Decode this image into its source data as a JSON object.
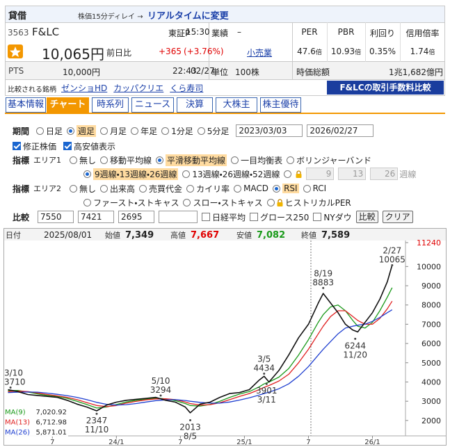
{
  "header": {
    "badge": "貸借",
    "delay": "株価15分ディレイ →",
    "realtime": "リアルタイムに変更"
  },
  "quote": {
    "code": "3563",
    "name": "F&LC",
    "market": "東証P",
    "time": "15:30",
    "price": "10,065円",
    "change_label": "前日比",
    "change": "+365",
    "change_pct": "(+3.76%)",
    "pts_label": "PTS",
    "pts_price": "10,000円",
    "pts_time": "22:43",
    "pts_date": "02/27"
  },
  "info": {
    "results_label": "業績",
    "results": "–",
    "industry": "小売業",
    "unit_label": "単位",
    "unit": "100株"
  },
  "metrics": [
    {
      "label": "PER",
      "value": "47.6",
      "unit": "倍"
    },
    {
      "label": "PBR",
      "value": "10.93",
      "unit": "倍"
    },
    {
      "label": "利回り",
      "value": "0.35%"
    },
    {
      "label": "信用倍率",
      "value": "1.74",
      "unit": "倍"
    }
  ],
  "market_cap": {
    "label": "時価総額",
    "value": "1兆1,682億円"
  },
  "related": {
    "label": "比較される銘柄",
    "stocks": [
      "ゼンショHD",
      "カッパクリエ",
      "くら寿司"
    ]
  },
  "fee_link": "F&LCの取引手数料比較",
  "tabs": [
    {
      "label": "基本情報"
    },
    {
      "label": "チャート",
      "active": true
    },
    {
      "label": "時系列"
    },
    {
      "label": "ニュース"
    },
    {
      "label": "決算"
    },
    {
      "label": "大株主"
    },
    {
      "label": "株主優待"
    }
  ],
  "controls": {
    "period": {
      "label": "期間",
      "options": [
        "日足",
        "週足",
        "月足",
        "年足",
        "1分足",
        "5分足"
      ],
      "selected": 1,
      "from": "2023/03/03",
      "to": "2026/02/27"
    },
    "checks": [
      {
        "label": "修正株価",
        "checked": true
      },
      {
        "label": "高安値表示",
        "checked": true
      }
    ],
    "area1": {
      "label": "指標",
      "area": "エリア1",
      "options": [
        "無し",
        "移動平均線",
        "平滑移動平均線",
        "一目均衡表",
        "ボリンジャーバンド"
      ],
      "selected": 2,
      "sub_options": [
        "9週線・13週線・26週線",
        "13週線・26週線・52週線"
      ],
      "sub_selected": 0,
      "custom": [
        "9",
        "13",
        "26"
      ],
      "custom_unit": "週線"
    },
    "area2": {
      "label": "指標",
      "area": "エリア2",
      "options": [
        "無し",
        "出来高",
        "売買代金",
        "カイリ率",
        "MACD",
        "RSI",
        "RCI",
        "ファースト・ストキャス",
        "スロー・ストキャス",
        "ヒストリカルPER"
      ],
      "selected": 5
    },
    "compare": {
      "label": "比較",
      "codes": [
        "7550",
        "7421",
        "2695"
      ],
      "indices": [
        "日経平均",
        "グロース250",
        "NYダウ"
      ],
      "buttons": [
        "比較",
        "クリア"
      ]
    }
  },
  "chart_info": {
    "date_label": "日付",
    "date": "2025/08/01",
    "open_label": "始値",
    "open": "7,349",
    "high_label": "高値",
    "high": "7,667",
    "low_label": "安値",
    "low": "7,082",
    "close_label": "終値",
    "close": "7,589"
  },
  "chart_data": {
    "type": "line",
    "x": [
      0,
      4,
      8,
      12,
      16,
      20,
      24,
      28,
      32,
      36,
      40,
      44,
      48,
      52,
      56,
      60,
      64,
      68,
      72,
      74,
      78,
      82,
      86,
      90,
      94,
      98,
      102,
      104,
      106,
      110,
      114,
      118,
      122,
      126,
      128,
      131,
      134,
      137,
      140,
      142,
      145,
      148,
      151,
      154,
      156
    ],
    "values": [
      3600,
      3500,
      3350,
      3300,
      3250,
      3200,
      3050,
      2850,
      2700,
      2500,
      2800,
      2950,
      3050,
      3100,
      3150,
      3200,
      3050,
      2950,
      2700,
      2400,
      2850,
      2950,
      3200,
      3400,
      3450,
      3600,
      4100,
      4300,
      4000,
      4600,
      5400,
      6300,
      7000,
      8100,
      8600,
      8100,
      7600,
      7000,
      6700,
      6600,
      7100,
      7600,
      8300,
      9200,
      10065
    ],
    "color": "#111111",
    "series": [
      {
        "name": "MA(9)",
        "latest": "7,020.92",
        "color": "#1a9a1a",
        "values": [
          3550,
          3560,
          3480,
          3380,
          3300,
          3240,
          3150,
          3000,
          2830,
          2650,
          2700,
          2830,
          2960,
          3050,
          3110,
          3160,
          3120,
          3030,
          2880,
          2780,
          2750,
          2830,
          3000,
          3200,
          3370,
          3500,
          3750,
          3900,
          4000,
          4250,
          4700,
          5400,
          6200,
          7100,
          7500,
          7900,
          8000,
          7700,
          7200,
          6900,
          6800,
          7100,
          7700,
          8400,
          8900
        ]
      },
      {
        "name": "MA(13)",
        "latest": "6,712.98",
        "color": "#e02020",
        "values": [
          3500,
          3530,
          3500,
          3430,
          3350,
          3280,
          3200,
          3080,
          2930,
          2780,
          2720,
          2780,
          2900,
          2990,
          3070,
          3120,
          3130,
          3080,
          2960,
          2880,
          2800,
          2820,
          2920,
          3080,
          3250,
          3400,
          3600,
          3720,
          3820,
          4050,
          4400,
          5000,
          5700,
          6500,
          6900,
          7400,
          7700,
          7700,
          7400,
          7200,
          7000,
          7000,
          7300,
          7800,
          8200
        ]
      },
      {
        "name": "MA(26)",
        "latest": "5,871.01",
        "color": "#1f3fd0",
        "values": [
          3450,
          3470,
          3480,
          3470,
          3420,
          3360,
          3290,
          3200,
          3080,
          2940,
          2840,
          2800,
          2820,
          2880,
          2960,
          3030,
          3070,
          3080,
          3040,
          3000,
          2940,
          2900,
          2900,
          2960,
          3060,
          3180,
          3320,
          3400,
          3470,
          3650,
          3900,
          4300,
          4800,
          5400,
          5700,
          6100,
          6500,
          6800,
          6900,
          6950,
          7000,
          7150,
          7350,
          7600,
          7750
        ]
      }
    ],
    "xlim": [
      -1,
      160
    ],
    "xticks": [
      {
        "value": 18,
        "label": "7"
      },
      {
        "value": 44,
        "label": "24/1"
      },
      {
        "value": 70,
        "label": "7"
      },
      {
        "value": 96,
        "label": "25/1"
      },
      {
        "value": 122,
        "label": "7"
      },
      {
        "value": 148,
        "label": "26/1"
      }
    ],
    "ylim": [
      1200,
      11240
    ],
    "yticks": [
      11240,
      10000,
      9000,
      8000,
      7000,
      6000,
      5000,
      4000,
      3000,
      2000
    ],
    "top_tick_color": "#e00000",
    "grid": false,
    "annotations": [
      {
        "x": 1,
        "value": 3710,
        "date": "3/10",
        "position": "above"
      },
      {
        "x": 36,
        "value": 2347,
        "date": "11/10",
        "position": "below"
      },
      {
        "x": 62,
        "value": 3294,
        "date": "5/10",
        "position": "above"
      },
      {
        "x": 74,
        "value": 2013,
        "date": "8/5",
        "position": "below"
      },
      {
        "x": 104,
        "value": 4434,
        "date": "3/5",
        "position": "above"
      },
      {
        "x": 105,
        "value": 3901,
        "date": "3/11",
        "position": "below"
      },
      {
        "x": 128,
        "value": 8883,
        "date": "8/19",
        "position": "above"
      },
      {
        "x": 141,
        "value": 6244,
        "date": "11/20",
        "position": "below"
      },
      {
        "x": 156,
        "value": 10065,
        "date": "2/27",
        "position": "above"
      }
    ]
  }
}
